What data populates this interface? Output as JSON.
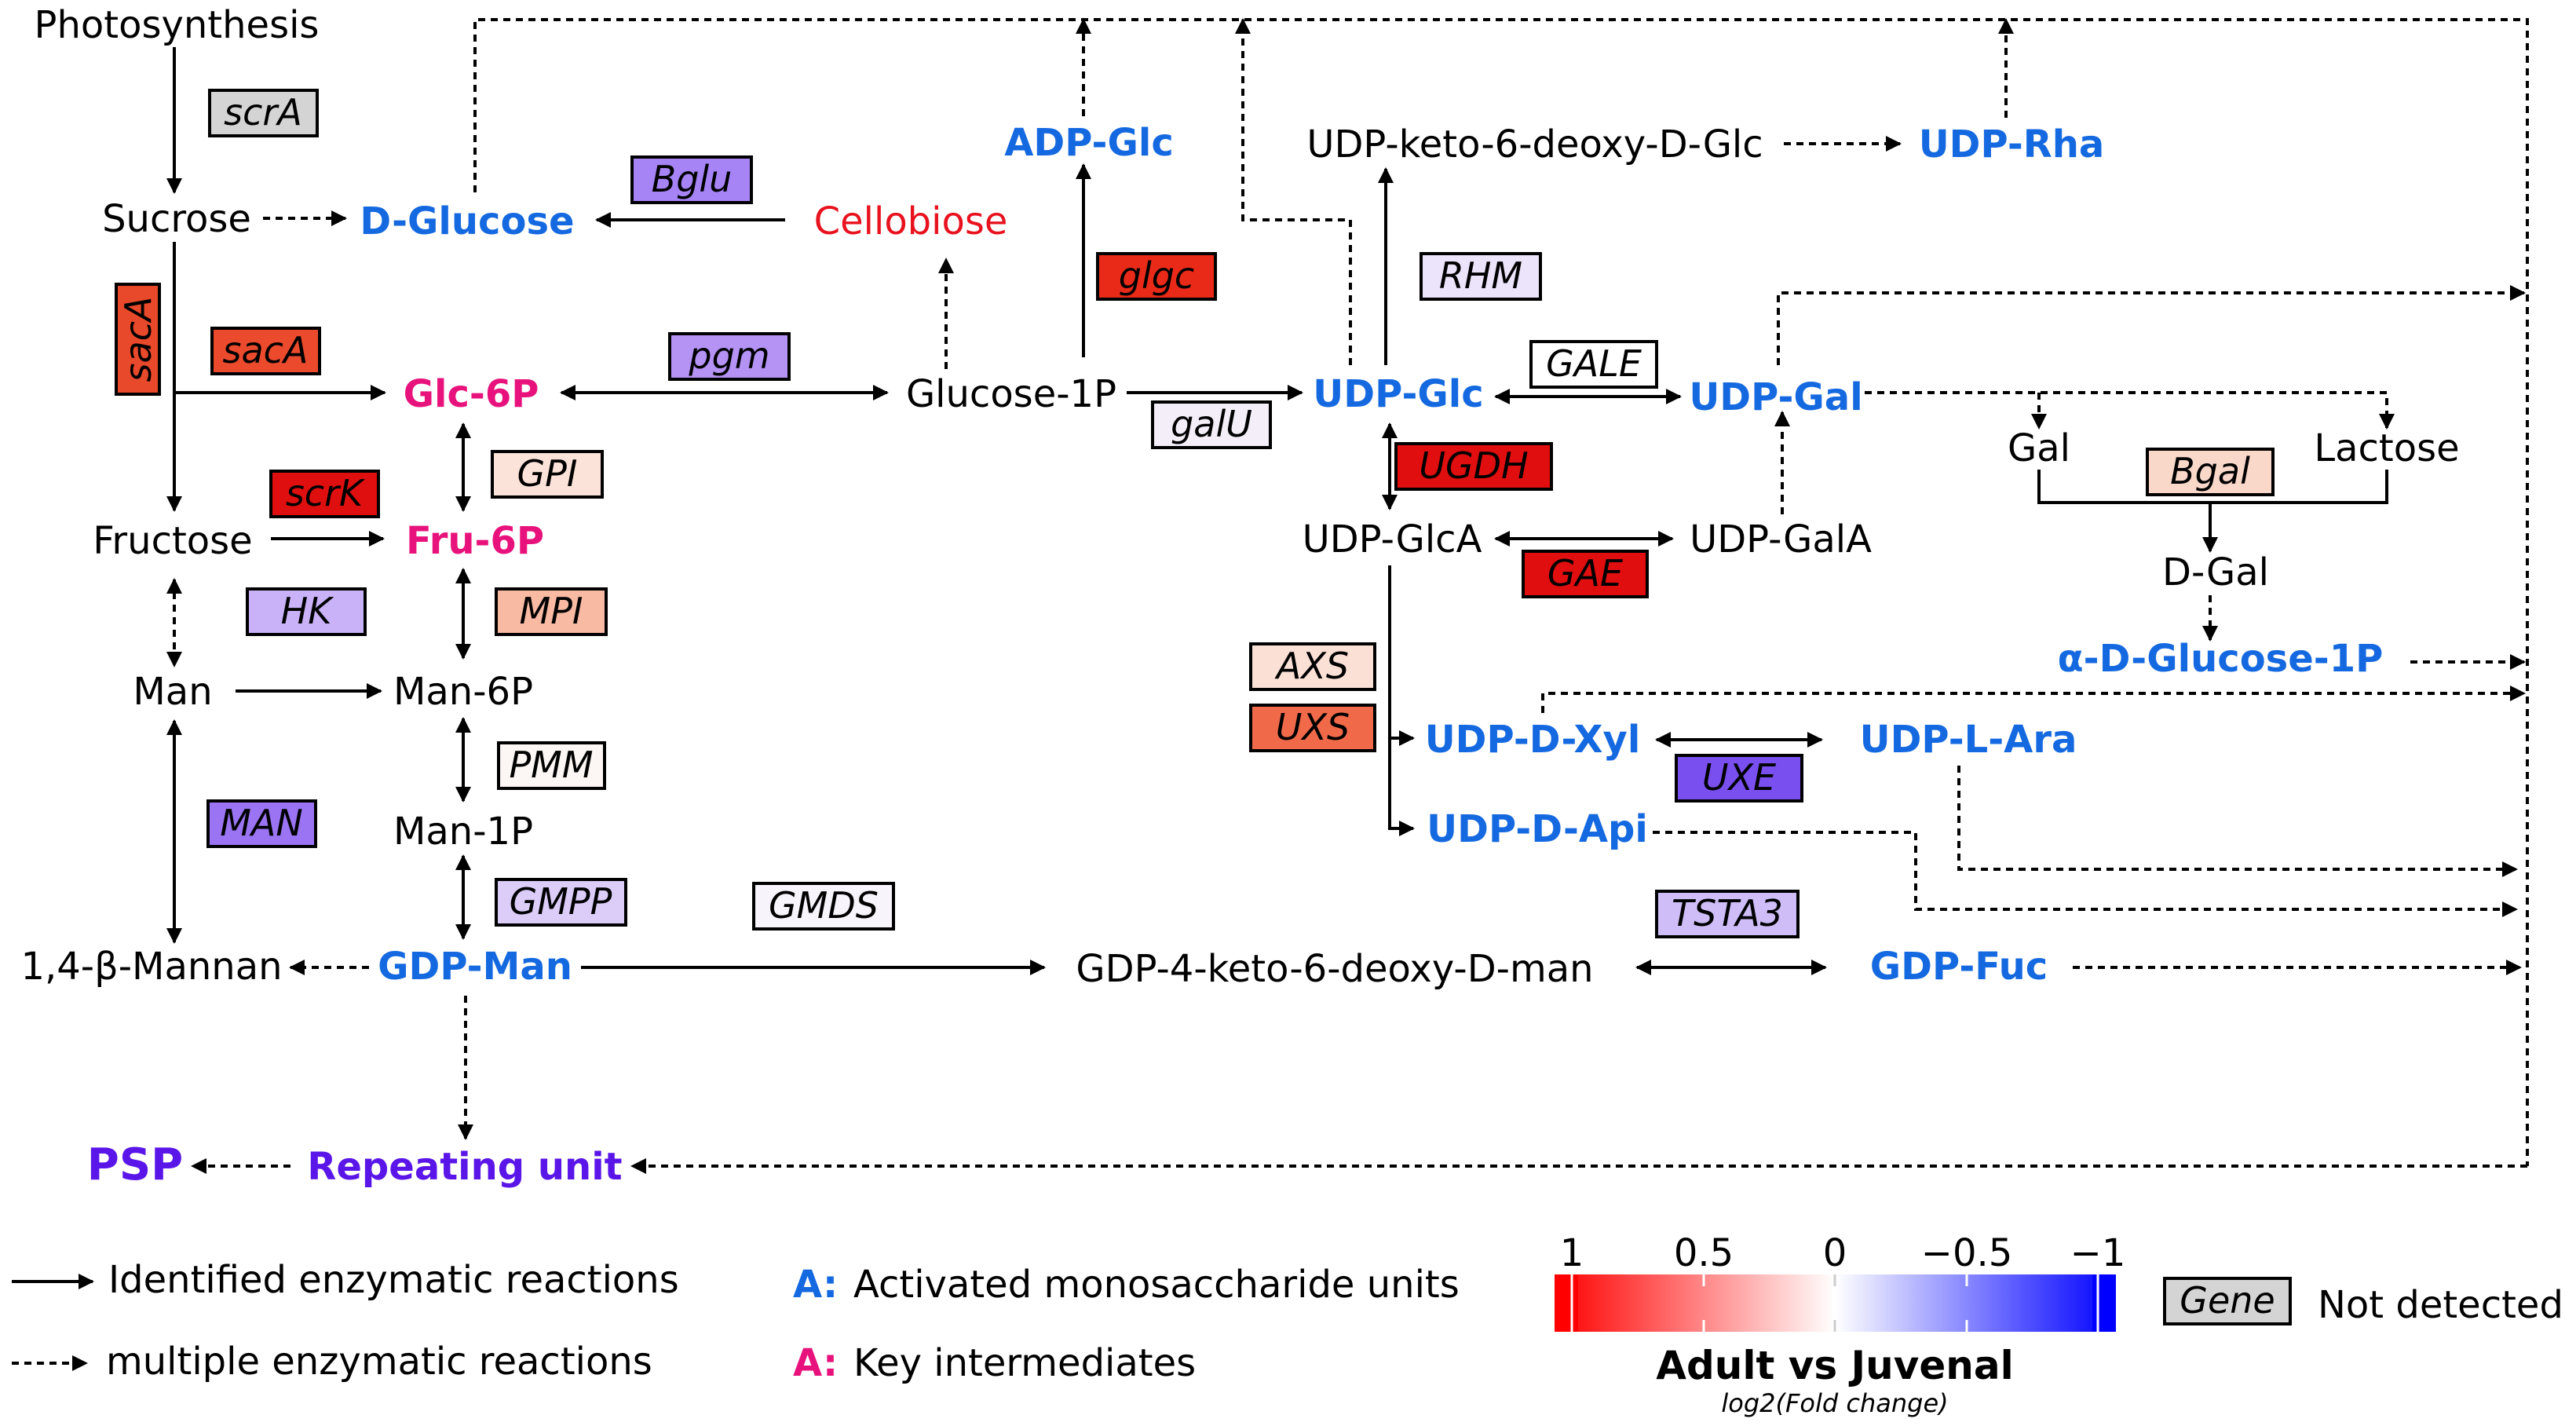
{
  "metabolites": {
    "photosynthesis": "Photosynthesis",
    "sucrose": "Sucrose",
    "d_glucose": "D-Glucose",
    "cellobiose": "Cellobiose",
    "adp_glc": "ADP-Glc",
    "udp_keto_glc": "UDP-keto-6-deoxy-D-Glc",
    "udp_rha": "UDP-Rha",
    "glc_6p": "Glc-6P",
    "glucose_1p": "Glucose-1P",
    "udp_glc": "UDP-Glc",
    "udp_gal": "UDP-Gal",
    "gal": "Gal",
    "lactose": "Lactose",
    "fructose": "Fructose",
    "fru_6p": "Fru-6P",
    "udp_glca": "UDP-GlcA",
    "udp_gala": "UDP-GalA",
    "d_gal": "D-Gal",
    "alpha_d_glucose_1p": "α-D-Glucose-1P",
    "man": "Man",
    "man_6p": "Man-6P",
    "udp_d_xyl": "UDP-D-Xyl",
    "udp_l_ara": "UDP-L-Ara",
    "man_1p": "Man-1P",
    "udp_d_api": "UDP-D-Api",
    "mannan": "1,4-β-Mannan",
    "gdp_man": "GDP-Man",
    "gdp_keto_man": "GDP-4-keto-6-deoxy-D-man",
    "gdp_fuc": "GDP-Fuc",
    "psp": "PSP",
    "repeating_unit": "Repeating unit"
  },
  "genes": {
    "scrA": {
      "label": "scrA",
      "fill": "#d4d4d4"
    },
    "bglu": {
      "label": "Bglu",
      "fill": "#a684f5"
    },
    "sacA_v": {
      "label": "sacA",
      "fill": "#e9492b"
    },
    "sacA_h": {
      "label": "sacA",
      "fill": "#ec4a2c"
    },
    "glgc": {
      "label": "glgc",
      "fill": "#ea2a18"
    },
    "rhm": {
      "label": "RHM",
      "fill": "#ece4fb"
    },
    "pgm": {
      "label": "pgm",
      "fill": "#b493f5"
    },
    "gale": {
      "label": "GALE",
      "fill": "#ffffff"
    },
    "galU": {
      "label": "galU",
      "fill": "#f4eef9"
    },
    "gpi": {
      "label": "GPI",
      "fill": "#fbe3da"
    },
    "scrK": {
      "label": "scrK",
      "fill": "#e00f0f"
    },
    "ugdh": {
      "label": "UGDH",
      "fill": "#e00e0e"
    },
    "bgal": {
      "label": "Bgal",
      "fill": "#f9d8ca"
    },
    "hk": {
      "label": "HK",
      "fill": "#c9b2f8"
    },
    "mpi": {
      "label": "MPI",
      "fill": "#f8baa3"
    },
    "gae": {
      "label": "GAE",
      "fill": "#e00e0e"
    },
    "axs": {
      "label": "AXS",
      "fill": "#fbe0d6"
    },
    "uxs": {
      "label": "UXS",
      "fill": "#f06a4a"
    },
    "pmm": {
      "label": "PMM",
      "fill": "#fcf7f5"
    },
    "uxe": {
      "label": "UXE",
      "fill": "#7a4ff0"
    },
    "man": {
      "label": "MAN",
      "fill": "#9a74f3"
    },
    "gmpp": {
      "label": "GMPP",
      "fill": "#dccdf8"
    },
    "gmds": {
      "label": "GMDS",
      "fill": "#f7f4fb"
    },
    "tsta3": {
      "label": "TSTA3",
      "fill": "#cfbdf7"
    }
  },
  "legend": {
    "solid_label": "Identified enzymatic reactions",
    "dashed_label": "multiple enzymatic reactions",
    "activated_marker": "A:",
    "activated_label": "Activated monosaccharide units",
    "key_marker": "A:",
    "key_label": "Key intermediates",
    "gene_box_label": "Gene",
    "not_detected_label": "Not detected"
  },
  "colorbar": {
    "title": "Adult vs Juvenal",
    "subtitle": "log2(Fold change)",
    "ticks": [
      "1",
      "0.5",
      "0",
      "−0.5",
      "−1"
    ],
    "high_color": "#ff0000",
    "mid_color": "#ffffff",
    "low_color": "#0000ff"
  },
  "colors": {
    "activated": "#1569e0",
    "key_intermediate": "#e8127c",
    "cellobiose": "#e8121e",
    "psp": "#5a15e8",
    "not_detected": "#d4d4d4"
  }
}
